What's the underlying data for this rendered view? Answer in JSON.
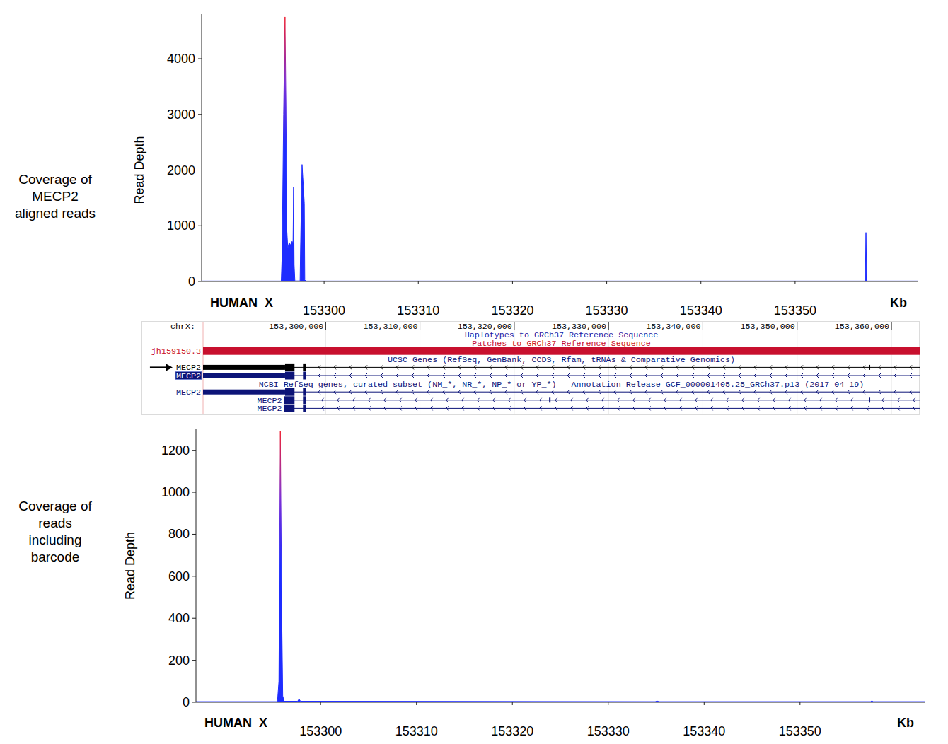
{
  "chart_data": [
    {
      "type": "area",
      "title": [
        "Coverage of",
        "MECP2",
        "aligned reads"
      ],
      "y_label": "Read Depth",
      "x_label": "Kb",
      "annotations": [
        "HUMAN_X"
      ],
      "color": "#1e2cff",
      "xlim": [
        153287,
        153363
      ],
      "ylim": [
        0,
        4800
      ],
      "xticks": [
        153300,
        153310,
        153320,
        153330,
        153340,
        153350
      ],
      "yticks": [
        0,
        1000,
        2000,
        3000,
        4000
      ],
      "x": [
        153287,
        153295.45,
        153295.55,
        153295.7,
        153295.85,
        153295.95,
        153296.05,
        153296.15,
        153296.3,
        153296.45,
        153296.6,
        153296.7,
        153296.76,
        153296.82,
        153296.9,
        153297.45,
        153297.5,
        153297.66,
        153297.8,
        153297.9,
        153297.95,
        153298.05,
        153357.45,
        153357.52,
        153357.6,
        153363
      ],
      "values": [
        8,
        8,
        500,
        3000,
        4750,
        3200,
        900,
        600,
        700,
        650,
        720,
        700,
        1700,
        300,
        10,
        10,
        600,
        2100,
        1700,
        1400,
        30,
        8,
        8,
        880,
        8,
        8
      ]
    },
    {
      "type": "area",
      "title": [
        "Coverage of",
        "reads",
        "including",
        "barcode"
      ],
      "y_label": "Read Depth",
      "x_label": "Kb",
      "annotations": [
        "HUMAN_X"
      ],
      "color": "#1e2cff",
      "xlim": [
        153287,
        153363
      ],
      "ylim": [
        0,
        1300
      ],
      "xticks": [
        153300,
        153310,
        153320,
        153330,
        153340,
        153350
      ],
      "yticks": [
        0,
        200,
        400,
        600,
        800,
        1000,
        1200
      ],
      "x": [
        153287,
        153295.5,
        153295.65,
        153295.8,
        153295.95,
        153296.05,
        153296.2,
        153297.6,
        153297.75,
        153297.9,
        153334.9,
        153335.1,
        153335.3,
        153357.4,
        153357.5,
        153357.6,
        153363
      ],
      "values": [
        3,
        3,
        100,
        1290,
        400,
        30,
        5,
        5,
        15,
        5,
        3,
        6,
        3,
        3,
        8,
        3,
        3
      ]
    }
  ],
  "browser": {
    "xlim": [
      153287,
      153363
    ],
    "position_label": "chrX:",
    "ruler_ticks": [
      {
        "value": 153300,
        "label": "153,300,000"
      },
      {
        "value": 153310,
        "label": "153,310,000"
      },
      {
        "value": 153320,
        "label": "153,320,000"
      },
      {
        "value": 153330,
        "label": "153,330,000"
      },
      {
        "value": 153340,
        "label": "153,340,000"
      },
      {
        "value": 153350,
        "label": "153,350,000"
      },
      {
        "value": 153360,
        "label": "153,360,000"
      }
    ],
    "tracks": [
      {
        "title": "Haplotypes to GRCh37 Reference Sequence",
        "color": "#1a1aa6"
      },
      {
        "title": "Patches to GRCh37 Reference Sequence",
        "color": "#c8102e",
        "features": [
          {
            "label": "jh159150.3",
            "cds": [
              [
                153287,
                153363
              ]
            ]
          }
        ]
      },
      {
        "title": "UCSC Genes (RefSeq, GenBank, CCDS, Rfam, tRNAs & Comparative Genomics)",
        "color": "#0c1478",
        "features": [
          {
            "label": "MECP2",
            "color": "#000000",
            "marker": "arrow",
            "span": [
              153287,
              153363
            ],
            "utr": [
              [
                153287,
                153295.7
              ],
              [
                153357.6,
                153357.75
              ]
            ],
            "cds": [
              [
                153295.7,
                153296.7
              ],
              [
                153297.6,
                153297.9
              ]
            ]
          },
          {
            "label": "MECP2",
            "marker": "highlight",
            "span": [
              153287,
              153363
            ],
            "utr": [
              [
                153287,
                153295.7
              ]
            ],
            "cds": [
              [
                153295.7,
                153296.7
              ],
              [
                153297.6,
                153297.9
              ]
            ]
          }
        ]
      },
      {
        "title": "NCBI RefSeq genes, curated subset (NM_*, NR_*, NP_* or YP_*) - Annotation Release GCF_000001405.25_GRCh37.p13 (2017-04-19)",
        "color": "#0c1478",
        "features": [
          {
            "label": "MECP2",
            "span": [
              153287,
              153363
            ],
            "utr": [
              [
                153287,
                153295.7
              ]
            ],
            "cds": [
              [
                153295.7,
                153296.7
              ],
              [
                153297.6,
                153297.9
              ]
            ]
          },
          {
            "label": "MECP2",
            "span": [
              153295.6,
              153363
            ],
            "utr": [
              [
                153323.7,
                153323.85
              ],
              [
                153357.6,
                153357.75
              ]
            ],
            "cds": [
              [
                153295.6,
                153296.7
              ],
              [
                153297.6,
                153297.9
              ]
            ]
          },
          {
            "label": "MECP2",
            "span": [
              153295.6,
              153363
            ],
            "cds": [
              [
                153295.6,
                153296.7
              ],
              [
                153297.6,
                153297.9
              ]
            ]
          }
        ]
      }
    ]
  }
}
